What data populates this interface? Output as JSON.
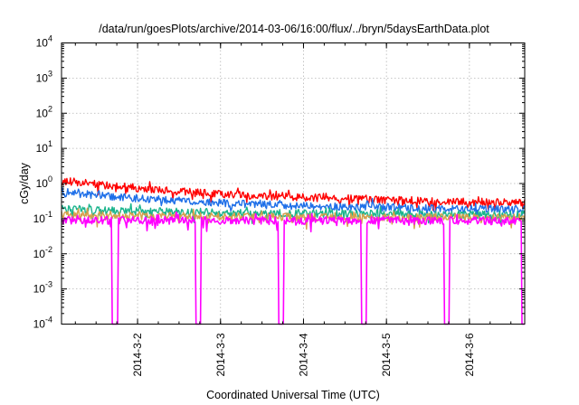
{
  "chart_data": {
    "type": "line",
    "title": "/data/run/goesPlots/archive/2014-03-06/16:00/flux/../bryn/5daysEarthData.plot",
    "xlabel": "Coordinated Universal Time (UTC)",
    "ylabel": "cGy/day",
    "yscale": "log",
    "ylim": [
      0.0001,
      10000
    ],
    "xlim": [
      "2014-03-01T02:00",
      "2014-03-06T16:00"
    ],
    "y_ticks": [
      {
        "value": 0.0001,
        "base": "10",
        "exp": "-4"
      },
      {
        "value": 0.001,
        "base": "10",
        "exp": "-3"
      },
      {
        "value": 0.01,
        "base": "10",
        "exp": "-2"
      },
      {
        "value": 0.1,
        "base": "10",
        "exp": "-1"
      },
      {
        "value": 1,
        "base": "10",
        "exp": "0"
      },
      {
        "value": 10,
        "base": "10",
        "exp": "1"
      },
      {
        "value": 100,
        "base": "10",
        "exp": "2"
      },
      {
        "value": 1000,
        "base": "10",
        "exp": "3"
      },
      {
        "value": 10000,
        "base": "10",
        "exp": "4"
      }
    ],
    "x_ticks": [
      {
        "value": "2014-03-02",
        "label": "2014-3-2"
      },
      {
        "value": "2014-03-03",
        "label": "2014-3-3"
      },
      {
        "value": "2014-03-04",
        "label": "2014-3-4"
      },
      {
        "value": "2014-03-05",
        "label": "2014-3-5"
      },
      {
        "value": "2014-03-06",
        "label": "2014-3-6"
      }
    ],
    "grid": true,
    "series": [
      {
        "color": "#ff0000",
        "x": [
          "2014-03-01T02:00",
          "2014-03-01T12:00",
          "2014-03-02T00:00",
          "2014-03-02T12:00",
          "2014-03-03T00:00",
          "2014-03-03T12:00",
          "2014-03-04T00:00",
          "2014-03-04T12:00",
          "2014-03-05T00:00",
          "2014-03-05T12:00",
          "2014-03-06T00:00",
          "2014-03-06T16:00"
        ],
        "y": [
          1.2,
          0.95,
          0.75,
          0.6,
          0.5,
          0.45,
          0.4,
          0.37,
          0.34,
          0.32,
          0.3,
          0.28
        ]
      },
      {
        "color": "#1e6fe8",
        "x": [
          "2014-03-01T02:00",
          "2014-03-01T12:00",
          "2014-03-02T00:00",
          "2014-03-02T12:00",
          "2014-03-03T00:00",
          "2014-03-03T12:00",
          "2014-03-04T00:00",
          "2014-03-04T12:00",
          "2014-03-05T00:00",
          "2014-03-05T12:00",
          "2014-03-06T00:00",
          "2014-03-06T16:00"
        ],
        "y": [
          0.6,
          0.45,
          0.38,
          0.32,
          0.28,
          0.25,
          0.23,
          0.22,
          0.21,
          0.2,
          0.19,
          0.19
        ]
      },
      {
        "color": "#1ab48c",
        "x": [
          "2014-03-01T02:00",
          "2014-03-02T00:00",
          "2014-03-03T00:00",
          "2014-03-04T00:00",
          "2014-03-05T00:00",
          "2014-03-06T00:00",
          "2014-03-06T16:00"
        ],
        "y": [
          0.19,
          0.16,
          0.15,
          0.14,
          0.14,
          0.13,
          0.13
        ]
      },
      {
        "color": "#d6a04c",
        "x": [
          "2014-03-01T02:00",
          "2014-03-02T00:00",
          "2014-03-03T00:00",
          "2014-03-04T00:00",
          "2014-03-05T00:00",
          "2014-03-06T00:00",
          "2014-03-06T16:00"
        ],
        "y": [
          0.13,
          0.12,
          0.115,
          0.11,
          0.11,
          0.11,
          0.11
        ]
      },
      {
        "color": "#ff00ff",
        "x": [
          "2014-03-01T02:00",
          "2014-03-02T00:00",
          "2014-03-03T00:00",
          "2014-03-04T00:00",
          "2014-03-05T00:00",
          "2014-03-06T00:00",
          "2014-03-06T16:00"
        ],
        "y": [
          0.09,
          0.09,
          0.088,
          0.088,
          0.088,
          0.087,
          0.087
        ],
        "dropouts": [
          "2014-03-01T17:30",
          "2014-03-02T17:30",
          "2014-03-03T17:30",
          "2014-03-04T17:30",
          "2014-03-05T17:30",
          "2014-03-06T16:00"
        ]
      }
    ]
  }
}
